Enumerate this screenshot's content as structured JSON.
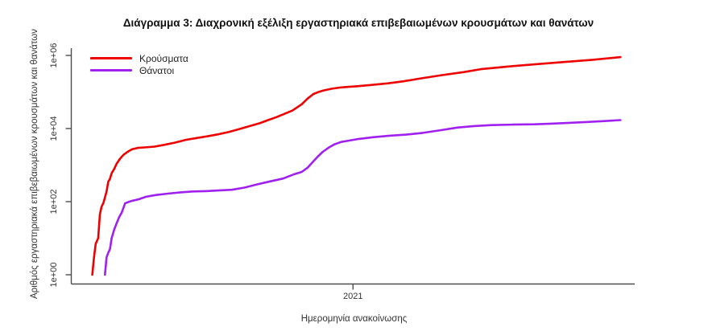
{
  "title": "Διάγραμμα 3: Διαχρονική εξέλιξη εργαστηριακά επιβεβαιωμένων κρουσμάτων και θανάτων",
  "axes": {
    "x_label": "Ημερομηνία ανακοίνωσης",
    "y_label": "Αριθμός εργαστηριακά επιβεβαιωμένων κρουσμάτων και θανάτων",
    "x_ticks": [
      "2021"
    ],
    "y_ticks": [
      "1e+00",
      "1e+02",
      "1e+04",
      "1e+06"
    ]
  },
  "legend": {
    "items": [
      {
        "label": "Κρούσματα",
        "color": "#ee0000"
      },
      {
        "label": "Θάνατοι",
        "color": "#a020f0"
      }
    ]
  },
  "colors": {
    "cases_line": "#ee0000",
    "deaths_line": "#a020f0",
    "axis": "#4d4d4d",
    "text": "#333333"
  },
  "chart_data": {
    "type": "line",
    "title": "Διάγραμμα 3: Διαχρονική εξέλιξη εργαστηριακά επιβεβαιωμένων κρουσμάτων και θανάτων",
    "xlabel": "Ημερομηνία ανακοίνωσης",
    "ylabel": "Αριθμός εργαστηριακά επιβεβαιωμένων κρουσμάτων και θανάτων",
    "y_scale": "log10",
    "ylim": [
      1,
      1000000
    ],
    "x_domain": [
      "2020-02-01",
      "2021-12-02"
    ],
    "x_tick_dates": [
      {
        "label": "2021",
        "date": "2021-01-01"
      }
    ],
    "y_tick_values": [
      1,
      100,
      10000,
      1000000
    ],
    "grid": false,
    "legend_position": "top-left",
    "series": [
      {
        "name": "Κρούσματα",
        "color": "#ee0000",
        "points": [
          [
            "2020-02-26",
            1
          ],
          [
            "2020-02-28",
            3
          ],
          [
            "2020-03-01",
            7
          ],
          [
            "2020-03-04",
            10
          ],
          [
            "2020-03-06",
            45
          ],
          [
            "2020-03-08",
            73
          ],
          [
            "2020-03-10",
            90
          ],
          [
            "2020-03-12",
            130
          ],
          [
            "2020-03-14",
            190
          ],
          [
            "2020-03-16",
            350
          ],
          [
            "2020-03-18",
            420
          ],
          [
            "2020-03-20",
            600
          ],
          [
            "2020-03-23",
            780
          ],
          [
            "2020-03-26",
            1100
          ],
          [
            "2020-03-30",
            1500
          ],
          [
            "2020-04-03",
            1900
          ],
          [
            "2020-04-08",
            2300
          ],
          [
            "2020-04-13",
            2700
          ],
          [
            "2020-04-20",
            2950
          ],
          [
            "2020-04-28",
            3050
          ],
          [
            "2020-05-10",
            3200
          ],
          [
            "2020-05-22",
            3600
          ],
          [
            "2020-06-03",
            4100
          ],
          [
            "2020-06-16",
            4900
          ],
          [
            "2020-06-29",
            5500
          ],
          [
            "2020-07-11",
            6100
          ],
          [
            "2020-07-24",
            6900
          ],
          [
            "2020-08-06",
            8000
          ],
          [
            "2020-08-19",
            9700
          ],
          [
            "2020-09-02",
            12000
          ],
          [
            "2020-09-12",
            14000
          ],
          [
            "2020-09-22",
            17000
          ],
          [
            "2020-10-02",
            20500
          ],
          [
            "2020-10-11",
            25000
          ],
          [
            "2020-10-21",
            31000
          ],
          [
            "2020-11-01",
            46000
          ],
          [
            "2020-11-08",
            66000
          ],
          [
            "2020-11-15",
            88000
          ],
          [
            "2020-11-21",
            100000
          ],
          [
            "2020-11-27",
            110000
          ],
          [
            "2020-12-07",
            123000
          ],
          [
            "2020-12-17",
            133000
          ],
          [
            "2020-12-27",
            138000
          ],
          [
            "2021-01-05",
            143000
          ],
          [
            "2021-01-22",
            155000
          ],
          [
            "2021-02-11",
            172000
          ],
          [
            "2021-03-02",
            196000
          ],
          [
            "2021-03-21",
            232000
          ],
          [
            "2021-04-17",
            290000
          ],
          [
            "2021-05-13",
            350000
          ],
          [
            "2021-06-02",
            420000
          ],
          [
            "2021-07-06",
            500000
          ],
          [
            "2021-08-08",
            580000
          ],
          [
            "2021-09-09",
            660000
          ],
          [
            "2021-10-13",
            760000
          ],
          [
            "2021-11-15",
            900000
          ]
        ]
      },
      {
        "name": "Θάνατοι",
        "color": "#a020f0",
        "points": [
          [
            "2020-03-12",
            1
          ],
          [
            "2020-03-14",
            3
          ],
          [
            "2020-03-16",
            4
          ],
          [
            "2020-03-18",
            5
          ],
          [
            "2020-03-20",
            10
          ],
          [
            "2020-03-23",
            17
          ],
          [
            "2020-03-26",
            26
          ],
          [
            "2020-03-29",
            38
          ],
          [
            "2020-04-01",
            50
          ],
          [
            "2020-04-05",
            90
          ],
          [
            "2020-04-09",
            98
          ],
          [
            "2020-04-14",
            106
          ],
          [
            "2020-04-21",
            116
          ],
          [
            "2020-04-30",
            136
          ],
          [
            "2020-05-12",
            152
          ],
          [
            "2020-05-26",
            166
          ],
          [
            "2020-06-10",
            180
          ],
          [
            "2020-06-25",
            190
          ],
          [
            "2020-07-10",
            194
          ],
          [
            "2020-07-25",
            202
          ],
          [
            "2020-08-10",
            212
          ],
          [
            "2020-08-25",
            242
          ],
          [
            "2020-09-10",
            300
          ],
          [
            "2020-09-25",
            360
          ],
          [
            "2020-10-10",
            430
          ],
          [
            "2020-10-22",
            550
          ],
          [
            "2020-11-01",
            650
          ],
          [
            "2020-11-08",
            850
          ],
          [
            "2020-11-14",
            1200
          ],
          [
            "2020-11-20",
            1700
          ],
          [
            "2020-11-26",
            2300
          ],
          [
            "2020-12-03",
            3000
          ],
          [
            "2020-12-10",
            3700
          ],
          [
            "2020-12-18",
            4300
          ],
          [
            "2020-12-28",
            4700
          ],
          [
            "2021-01-08",
            5200
          ],
          [
            "2021-01-25",
            5800
          ],
          [
            "2021-02-12",
            6300
          ],
          [
            "2021-03-05",
            6800
          ],
          [
            "2021-03-25",
            7600
          ],
          [
            "2021-04-15",
            9000
          ],
          [
            "2021-05-05",
            10600
          ],
          [
            "2021-05-25",
            11700
          ],
          [
            "2021-06-15",
            12400
          ],
          [
            "2021-07-10",
            12800
          ],
          [
            "2021-08-05",
            13100
          ],
          [
            "2021-08-25",
            13600
          ],
          [
            "2021-09-15",
            14300
          ],
          [
            "2021-10-05",
            15100
          ],
          [
            "2021-10-25",
            15900
          ],
          [
            "2021-11-15",
            17000
          ]
        ]
      }
    ]
  }
}
